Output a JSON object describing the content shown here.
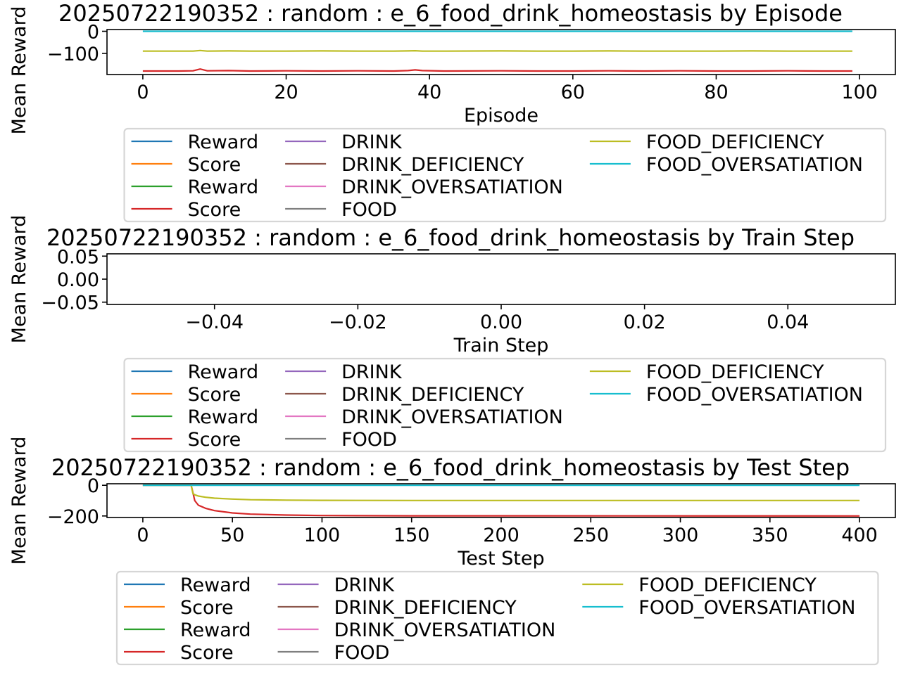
{
  "chart_data": [
    {
      "type": "line",
      "title": "20250722190352 : random : e_6_food_drink_homeostasis by Episode",
      "xlabel": "Episode",
      "ylabel": "Mean Reward",
      "xlim": [
        -5,
        105
      ],
      "ylim": [
        -196,
        8
      ],
      "grid": false,
      "xticks": [
        0,
        20,
        40,
        60,
        80,
        100
      ],
      "xtick_labels": [
        "0",
        "20",
        "40",
        "60",
        "80",
        "100"
      ],
      "yticks": [
        0,
        -100
      ],
      "ytick_labels": [
        "0",
        "−100"
      ],
      "legend": {
        "placement": "upper right, overflowing axes",
        "entries": [
          {
            "label": "Reward",
            "color": "#1f77b4"
          },
          {
            "label": "Score",
            "color": "#ff7f0e"
          },
          {
            "label": "Reward",
            "color": "#2ca02c"
          },
          {
            "label": "Score",
            "color": "#d62728"
          },
          {
            "label": "DRINK",
            "color": "#9467bd"
          },
          {
            "label": "DRINK_DEFICIENCY",
            "color": "#8c564b"
          },
          {
            "label": "DRINK_OVERSATIATION",
            "color": "#e377c2"
          },
          {
            "label": "FOOD",
            "color": "#7f7f7f"
          },
          {
            "label": "FOOD_DEFICIENCY",
            "color": "#bcbd22"
          },
          {
            "label": "FOOD_OVERSATIATION",
            "color": "#17becf"
          }
        ]
      },
      "series": [
        {
          "name": "Score",
          "color": "#d62728",
          "x": [
            0,
            5,
            7,
            8,
            9,
            12,
            15,
            20,
            25,
            30,
            35,
            37,
            38,
            39,
            42,
            50,
            55,
            60,
            65,
            70,
            75,
            80,
            85,
            90,
            95,
            99
          ],
          "y": [
            -180,
            -180,
            -179,
            -171,
            -179,
            -178,
            -180,
            -179,
            -180,
            -179,
            -180,
            -178,
            -175,
            -178,
            -180,
            -179,
            -180,
            -180,
            -179,
            -180,
            -179,
            -180,
            -180,
            -179,
            -180,
            -180
          ]
        },
        {
          "name": "FOOD_DEFICIENCY",
          "color": "#bcbd22",
          "x": [
            0,
            5,
            7,
            8,
            9,
            12,
            15,
            20,
            25,
            30,
            35,
            37,
            38,
            39,
            42,
            50,
            55,
            60,
            65,
            70,
            75,
            80,
            85,
            90,
            95,
            99
          ],
          "y": [
            -90,
            -90,
            -90,
            -87,
            -90,
            -89,
            -90,
            -90,
            -89,
            -90,
            -90,
            -89,
            -88,
            -90,
            -90,
            -89,
            -90,
            -90,
            -89,
            -90,
            -90,
            -90,
            -89,
            -90,
            -90,
            -90
          ]
        },
        {
          "name": "FOOD_OVERSATIATION",
          "color": "#17becf",
          "x": [
            0,
            99
          ],
          "y": [
            0,
            0
          ]
        }
      ]
    },
    {
      "type": "line",
      "title": "20250722190352 : random : e_6_food_drink_homeostasis by Train Step",
      "xlabel": "Train Step",
      "ylabel": "Mean Reward",
      "xlim": [
        -0.055,
        0.055
      ],
      "ylim": [
        -0.055,
        0.055
      ],
      "grid": false,
      "xticks": [
        -0.04,
        -0.02,
        0.0,
        0.02,
        0.04
      ],
      "xtick_labels": [
        "−0.04",
        "−0.02",
        "0.00",
        "0.02",
        "0.04"
      ],
      "yticks": [
        0.05,
        0.0,
        -0.05
      ],
      "ytick_labels": [
        "0.05",
        "0.00",
        "−0.05"
      ],
      "legend": {
        "placement": "upper right, overflowing axes",
        "entries": [
          {
            "label": "Reward",
            "color": "#1f77b4"
          },
          {
            "label": "Score",
            "color": "#ff7f0e"
          },
          {
            "label": "Reward",
            "color": "#2ca02c"
          },
          {
            "label": "Score",
            "color": "#d62728"
          },
          {
            "label": "DRINK",
            "color": "#9467bd"
          },
          {
            "label": "DRINK_DEFICIENCY",
            "color": "#8c564b"
          },
          {
            "label": "DRINK_OVERSATIATION",
            "color": "#e377c2"
          },
          {
            "label": "FOOD",
            "color": "#7f7f7f"
          },
          {
            "label": "FOOD_DEFICIENCY",
            "color": "#bcbd22"
          },
          {
            "label": "FOOD_OVERSATIATION",
            "color": "#17becf"
          }
        ]
      },
      "series": []
    },
    {
      "type": "line",
      "title": "20250722190352 : random : e_6_food_drink_homeostasis by Test Step",
      "xlabel": "Test Step",
      "ylabel": "Mean Reward",
      "xlim": [
        -20,
        420
      ],
      "ylim": [
        -210,
        10
      ],
      "grid": false,
      "xticks": [
        0,
        50,
        100,
        150,
        200,
        250,
        300,
        350,
        400
      ],
      "xtick_labels": [
        "0",
        "50",
        "100",
        "150",
        "200",
        "250",
        "300",
        "350",
        "400"
      ],
      "yticks": [
        0,
        -200
      ],
      "ytick_labels": [
        "0",
        "−200"
      ],
      "legend": {
        "placement": "lower left, overflowing axes",
        "entries": [
          {
            "label": "Reward",
            "color": "#1f77b4"
          },
          {
            "label": "Score",
            "color": "#ff7f0e"
          },
          {
            "label": "Reward",
            "color": "#2ca02c"
          },
          {
            "label": "Score",
            "color": "#d62728"
          },
          {
            "label": "DRINK",
            "color": "#9467bd"
          },
          {
            "label": "DRINK_DEFICIENCY",
            "color": "#8c564b"
          },
          {
            "label": "DRINK_OVERSATIATION",
            "color": "#e377c2"
          },
          {
            "label": "FOOD",
            "color": "#7f7f7f"
          },
          {
            "label": "FOOD_DEFICIENCY",
            "color": "#bcbd22"
          },
          {
            "label": "FOOD_OVERSATIATION",
            "color": "#17becf"
          }
        ]
      },
      "series": [
        {
          "name": "Score",
          "color": "#d62728",
          "x": [
            0,
            27,
            28,
            29,
            31,
            35,
            40,
            50,
            60,
            80,
            100,
            150,
            400
          ],
          "y": [
            0,
            0,
            -50,
            -100,
            -130,
            -150,
            -165,
            -180,
            -188,
            -194,
            -197,
            -199,
            -200
          ]
        },
        {
          "name": "FOOD_DEFICIENCY",
          "color": "#bcbd22",
          "x": [
            0,
            27,
            28,
            29,
            31,
            35,
            40,
            50,
            60,
            80,
            100,
            150,
            400
          ],
          "y": [
            0,
            0,
            -55,
            -62,
            -70,
            -78,
            -84,
            -90,
            -94,
            -97,
            -98,
            -99,
            -99
          ]
        },
        {
          "name": "FOOD_OVERSATIATION",
          "color": "#17becf",
          "x": [
            0,
            400
          ],
          "y": [
            0,
            0
          ]
        }
      ]
    }
  ]
}
